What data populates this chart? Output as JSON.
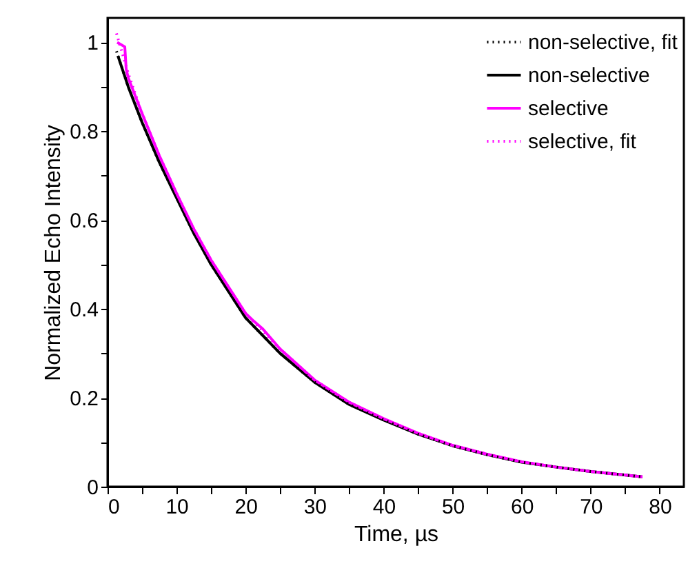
{
  "chart_data": {
    "type": "line",
    "xlabel": "Time, µs",
    "ylabel": "Normalized Echo Intensity",
    "xlim": [
      0,
      83.5
    ],
    "ylim": [
      0,
      1.055
    ],
    "xticks": [
      0,
      {
        "value": 5,
        "label": null
      },
      10,
      {
        "value": 15,
        "label": null
      },
      20,
      {
        "value": 25,
        "label": null
      },
      30,
      {
        "value": 35,
        "label": null
      },
      40,
      {
        "value": 45,
        "label": null
      },
      50,
      {
        "value": 55,
        "label": null
      },
      60,
      {
        "value": 65,
        "label": null
      },
      70,
      {
        "value": 75,
        "label": null
      },
      80
    ],
    "yticks": [
      0,
      {
        "value": 0.1,
        "label": null
      },
      0.2,
      {
        "value": 0.3,
        "label": null
      },
      0.4,
      {
        "value": 0.5,
        "label": null
      },
      0.6,
      {
        "value": 0.7,
        "label": null
      },
      0.8,
      {
        "value": 0.9,
        "label": null
      },
      1
    ],
    "grid": false,
    "legend": "top right",
    "series": [
      {
        "name": "non-selective, fit",
        "color": "#000000",
        "line_style": "dotted",
        "x": [
          1.3,
          3,
          5,
          7.5,
          10,
          12.5,
          15,
          17.5,
          20,
          25,
          30,
          35,
          40,
          45,
          50,
          55,
          60,
          65,
          70,
          77.5
        ],
        "values": [
          0.98,
          0.9,
          0.82,
          0.73,
          0.65,
          0.57,
          0.5,
          0.44,
          0.38,
          0.3,
          0.235,
          0.185,
          0.15,
          0.118,
          0.092,
          0.072,
          0.055,
          0.044,
          0.034,
          0.022
        ]
      },
      {
        "name": "non-selective",
        "color": "#000000",
        "line_style": "solid",
        "x": [
          1.5,
          3,
          5,
          7.5,
          10,
          12.5,
          15,
          17.5,
          20,
          25,
          30,
          35,
          40,
          45,
          50,
          55,
          60,
          65,
          70,
          77.5
        ],
        "values": [
          0.97,
          0.9,
          0.82,
          0.73,
          0.65,
          0.57,
          0.5,
          0.44,
          0.38,
          0.3,
          0.235,
          0.185,
          0.15,
          0.118,
          0.092,
          0.072,
          0.055,
          0.044,
          0.034,
          0.022
        ]
      },
      {
        "name": "selective",
        "color": "#ff00ff",
        "line_style": "solid",
        "x": [
          1.4,
          2.5,
          2.7,
          3,
          5,
          7.5,
          10,
          12.5,
          15,
          17.5,
          20,
          21,
          22.5,
          25,
          30,
          35,
          40,
          45,
          50,
          55,
          60,
          65,
          70,
          77.5
        ],
        "values": [
          1.0,
          0.99,
          0.94,
          0.92,
          0.84,
          0.745,
          0.66,
          0.58,
          0.51,
          0.45,
          0.39,
          0.375,
          0.355,
          0.31,
          0.24,
          0.19,
          0.153,
          0.12,
          0.093,
          0.073,
          0.056,
          0.044,
          0.034,
          0.022
        ]
      },
      {
        "name": "selective, fit",
        "color": "#ff00ff",
        "line_style": "dotted",
        "x": [
          1.3,
          3,
          5,
          7.5,
          10,
          12.5,
          15,
          17.5,
          20,
          25,
          30,
          35,
          40,
          45,
          50,
          55,
          60,
          65,
          70,
          77.5
        ],
        "values": [
          1.02,
          0.93,
          0.84,
          0.745,
          0.66,
          0.58,
          0.51,
          0.45,
          0.39,
          0.31,
          0.24,
          0.19,
          0.153,
          0.12,
          0.093,
          0.073,
          0.056,
          0.044,
          0.034,
          0.022
        ]
      }
    ]
  }
}
